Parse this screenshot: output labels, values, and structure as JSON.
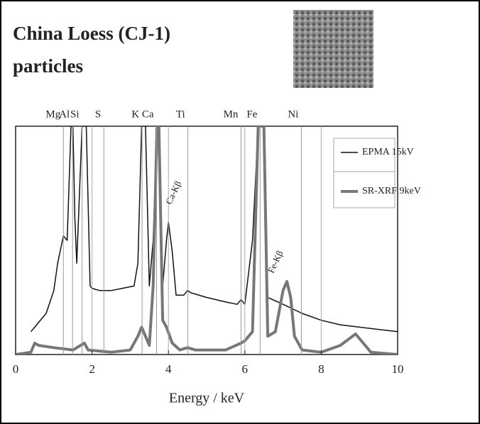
{
  "chart_data": {
    "type": "line",
    "title": "China Loess (CJ-1)",
    "subtitle": "particles",
    "xlabel": "Energy / keV",
    "xlim": [
      0,
      10
    ],
    "xticks": [
      0,
      2,
      4,
      6,
      8,
      10
    ],
    "ylim": [
      0,
      100
    ],
    "grid": true,
    "legend": "upper right",
    "element_lines": [
      {
        "label": "Mg",
        "x": 1.25
      },
      {
        "label": "Al",
        "x": 1.49
      },
      {
        "label": "Si",
        "x": 1.74
      },
      {
        "label": "S",
        "x": 2.31
      },
      {
        "label": "K",
        "x": 3.31
      },
      {
        "label": "Ca",
        "x": 3.69
      },
      {
        "label": "Ti",
        "x": 4.51
      },
      {
        "label": "Mn",
        "x": 5.9
      },
      {
        "label": "Fe",
        "x": 6.4
      },
      {
        "label": "Ni",
        "x": 7.48
      }
    ],
    "annotations": [
      "Ca-Kβ",
      "Fe-Kβ"
    ],
    "series": [
      {
        "name": "EPMA 15kV",
        "color": "#111111",
        "width": 1.5,
        "x": [
          0.4,
          0.5,
          0.8,
          1.0,
          1.1,
          1.2,
          1.25,
          1.35,
          1.45,
          1.5,
          1.55,
          1.6,
          1.74,
          1.85,
          1.95,
          2.0,
          2.2,
          2.5,
          2.8,
          3.1,
          3.2,
          3.3,
          3.4,
          3.5,
          3.6,
          3.7,
          3.75,
          3.85,
          3.95,
          4.0,
          4.1,
          4.2,
          4.4,
          4.5,
          4.6,
          5.0,
          5.5,
          5.8,
          5.9,
          6.0,
          6.2,
          6.35,
          6.5,
          6.6,
          7.0,
          7.5,
          8.0,
          8.5,
          9.0,
          9.5,
          10.0
        ],
        "values": [
          10,
          12,
          18,
          28,
          40,
          48,
          52,
          50,
          100,
          100,
          60,
          40,
          100,
          100,
          30,
          29,
          28,
          28,
          29,
          30,
          40,
          100,
          100,
          30,
          50,
          100,
          100,
          30,
          50,
          58,
          45,
          26,
          26,
          28,
          27,
          25,
          23,
          22,
          24,
          22,
          50,
          100,
          100,
          25,
          22,
          18,
          15,
          13,
          12,
          11,
          10
        ]
      },
      {
        "name": "SR-XRF 9keV",
        "color": "#777777",
        "width": 4,
        "x": [
          0.0,
          0.4,
          0.5,
          0.6,
          1.0,
          1.5,
          1.7,
          1.8,
          1.9,
          2.5,
          3.0,
          3.2,
          3.3,
          3.4,
          3.5,
          3.6,
          3.7,
          3.75,
          3.85,
          3.95,
          4.1,
          4.3,
          4.5,
          4.7,
          5.5,
          5.9,
          6.0,
          6.2,
          6.35,
          6.5,
          6.6,
          6.8,
          7.0,
          7.1,
          7.2,
          7.3,
          7.5,
          8.0,
          8.5,
          8.9,
          9.1,
          9.3,
          10.0
        ],
        "values": [
          0,
          1,
          5,
          4,
          3,
          2,
          4,
          5,
          2,
          1,
          2,
          8,
          12,
          8,
          4,
          30,
          100,
          100,
          15,
          12,
          5,
          2,
          3,
          2,
          2,
          5,
          6,
          10,
          100,
          100,
          8,
          10,
          28,
          32,
          25,
          8,
          2,
          1,
          4,
          9,
          5,
          1,
          0
        ]
      }
    ]
  }
}
